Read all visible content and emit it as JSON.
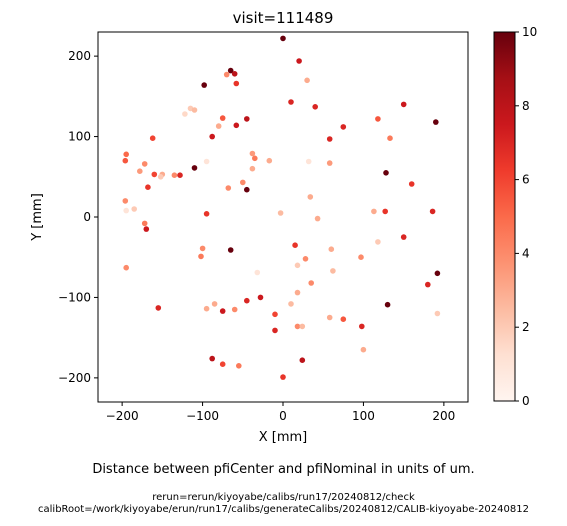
{
  "chart_data": {
    "type": "scatter",
    "title": "visit=111489",
    "xlabel": "X [mm]",
    "ylabel": "Y [mm]",
    "xlim": [
      -230,
      230
    ],
    "ylim": [
      -230,
      230
    ],
    "xticks": [
      -200,
      -100,
      0,
      100,
      200
    ],
    "yticks": [
      -200,
      -100,
      0,
      100,
      200
    ],
    "grid": false,
    "colormap": "Reds",
    "colorbar": {
      "vmin": 0,
      "vmax": 10,
      "ticks": [
        0,
        2,
        4,
        6,
        8,
        10
      ]
    },
    "points": [
      {
        "x": 0,
        "y": 222,
        "v": 10
      },
      {
        "x": 20,
        "y": 194,
        "v": 7.5
      },
      {
        "x": 30,
        "y": 170,
        "v": 3
      },
      {
        "x": -98,
        "y": 164,
        "v": 10
      },
      {
        "x": -65,
        "y": 182,
        "v": 10
      },
      {
        "x": -60,
        "y": 178,
        "v": 8
      },
      {
        "x": -70,
        "y": 177,
        "v": 4
      },
      {
        "x": -58,
        "y": 166,
        "v": 6.5
      },
      {
        "x": 10,
        "y": 143,
        "v": 7
      },
      {
        "x": 40,
        "y": 137,
        "v": 7
      },
      {
        "x": 150,
        "y": 140,
        "v": 7.5
      },
      {
        "x": -115,
        "y": 135,
        "v": 2
      },
      {
        "x": -110,
        "y": 133,
        "v": 2.5
      },
      {
        "x": -122,
        "y": 128,
        "v": 1.5
      },
      {
        "x": -75,
        "y": 123,
        "v": 5.5
      },
      {
        "x": -45,
        "y": 122,
        "v": 8
      },
      {
        "x": -58,
        "y": 114,
        "v": 7.5
      },
      {
        "x": -80,
        "y": 113,
        "v": 3
      },
      {
        "x": 75,
        "y": 112,
        "v": 7
      },
      {
        "x": 118,
        "y": 122,
        "v": 5.5
      },
      {
        "x": 190,
        "y": 118,
        "v": 10
      },
      {
        "x": -162,
        "y": 98,
        "v": 6
      },
      {
        "x": -88,
        "y": 100,
        "v": 7.5
      },
      {
        "x": 58,
        "y": 97,
        "v": 7
      },
      {
        "x": 133,
        "y": 98,
        "v": 4.5
      },
      {
        "x": -195,
        "y": 78,
        "v": 5
      },
      {
        "x": -196,
        "y": 70,
        "v": 5.5
      },
      {
        "x": -38,
        "y": 79,
        "v": 3.5
      },
      {
        "x": -35,
        "y": 73,
        "v": 4.5
      },
      {
        "x": -17,
        "y": 70,
        "v": 3
      },
      {
        "x": -95,
        "y": 69,
        "v": 1
      },
      {
        "x": 32,
        "y": 69,
        "v": 1
      },
      {
        "x": 58,
        "y": 67,
        "v": 3.5
      },
      {
        "x": -172,
        "y": 66,
        "v": 4
      },
      {
        "x": -38,
        "y": 60,
        "v": 3
      },
      {
        "x": -110,
        "y": 61,
        "v": 10
      },
      {
        "x": -178,
        "y": 57,
        "v": 3.5
      },
      {
        "x": -160,
        "y": 53,
        "v": 6
      },
      {
        "x": -150,
        "y": 53,
        "v": 3
      },
      {
        "x": -152,
        "y": 50,
        "v": 2
      },
      {
        "x": -135,
        "y": 52,
        "v": 4
      },
      {
        "x": -128,
        "y": 52,
        "v": 7
      },
      {
        "x": -168,
        "y": 37,
        "v": 6.5
      },
      {
        "x": -50,
        "y": 43,
        "v": 4
      },
      {
        "x": -68,
        "y": 36,
        "v": 4
      },
      {
        "x": -45,
        "y": 34,
        "v": 10
      },
      {
        "x": 160,
        "y": 41,
        "v": 6.5
      },
      {
        "x": 34,
        "y": 25,
        "v": 3
      },
      {
        "x": -196,
        "y": 20,
        "v": 4
      },
      {
        "x": -195,
        "y": 8,
        "v": 1
      },
      {
        "x": -185,
        "y": 10,
        "v": 2
      },
      {
        "x": -95,
        "y": 4,
        "v": 6.5
      },
      {
        "x": -3,
        "y": 5,
        "v": 2.5
      },
      {
        "x": 43,
        "y": -2,
        "v": 3
      },
      {
        "x": 113,
        "y": 7,
        "v": 3
      },
      {
        "x": 127,
        "y": 7,
        "v": 6.5
      },
      {
        "x": 186,
        "y": 7,
        "v": 7
      },
      {
        "x": 128,
        "y": 55,
        "v": 10
      },
      {
        "x": -172,
        "y": -8,
        "v": 4.5
      },
      {
        "x": -170,
        "y": -15,
        "v": 7.5
      },
      {
        "x": 15,
        "y": -35,
        "v": 6.5
      },
      {
        "x": 150,
        "y": -25,
        "v": 7
      },
      {
        "x": 118,
        "y": -31,
        "v": 2
      },
      {
        "x": -100,
        "y": -39,
        "v": 4
      },
      {
        "x": -65,
        "y": -41,
        "v": 10
      },
      {
        "x": 60,
        "y": -40,
        "v": 3
      },
      {
        "x": -102,
        "y": -49,
        "v": 4.5
      },
      {
        "x": 28,
        "y": -52,
        "v": 4
      },
      {
        "x": 18,
        "y": -60,
        "v": 2
      },
      {
        "x": 97,
        "y": -50,
        "v": 4
      },
      {
        "x": -195,
        "y": -63,
        "v": 4
      },
      {
        "x": -32,
        "y": -69,
        "v": 1
      },
      {
        "x": 62,
        "y": -67,
        "v": 2.5
      },
      {
        "x": 192,
        "y": -70,
        "v": 10
      },
      {
        "x": 35,
        "y": -82,
        "v": 4
      },
      {
        "x": 180,
        "y": -84,
        "v": 7
      },
      {
        "x": 18,
        "y": -94,
        "v": 3
      },
      {
        "x": -28,
        "y": -100,
        "v": 7.5
      },
      {
        "x": -45,
        "y": -104,
        "v": 7
      },
      {
        "x": -85,
        "y": -108,
        "v": 3
      },
      {
        "x": 10,
        "y": -108,
        "v": 2.5
      },
      {
        "x": 130,
        "y": -109,
        "v": 10
      },
      {
        "x": -155,
        "y": -113,
        "v": 7
      },
      {
        "x": -95,
        "y": -114,
        "v": 3
      },
      {
        "x": -75,
        "y": -117,
        "v": 7.5
      },
      {
        "x": -60,
        "y": -115,
        "v": 4
      },
      {
        "x": 192,
        "y": -120,
        "v": 2
      },
      {
        "x": -10,
        "y": -121,
        "v": 6
      },
      {
        "x": 58,
        "y": -125,
        "v": 3
      },
      {
        "x": 75,
        "y": -127,
        "v": 5.5
      },
      {
        "x": 18,
        "y": -136,
        "v": 4
      },
      {
        "x": 24,
        "y": -136,
        "v": 2.5
      },
      {
        "x": 98,
        "y": -136,
        "v": 7
      },
      {
        "x": -10,
        "y": -141,
        "v": 7
      },
      {
        "x": 100,
        "y": -165,
        "v": 3
      },
      {
        "x": -88,
        "y": -176,
        "v": 8
      },
      {
        "x": 24,
        "y": -178,
        "v": 8
      },
      {
        "x": -75,
        "y": -183,
        "v": 6
      },
      {
        "x": -55,
        "y": -185,
        "v": 4.5
      },
      {
        "x": 0,
        "y": -199,
        "v": 6.5
      }
    ]
  },
  "captions": {
    "main": "Distance between pfiCenter and pfiNominal in units of um.",
    "rerun": "rerun=rerun/kiyoyabe/calibs/run17/20240812/check",
    "calib": "calibRoot=/work/kiyoyabe/erun/run17/calibs/generateCalibs/20240812/CALIB-kiyoyabe-20240812"
  }
}
